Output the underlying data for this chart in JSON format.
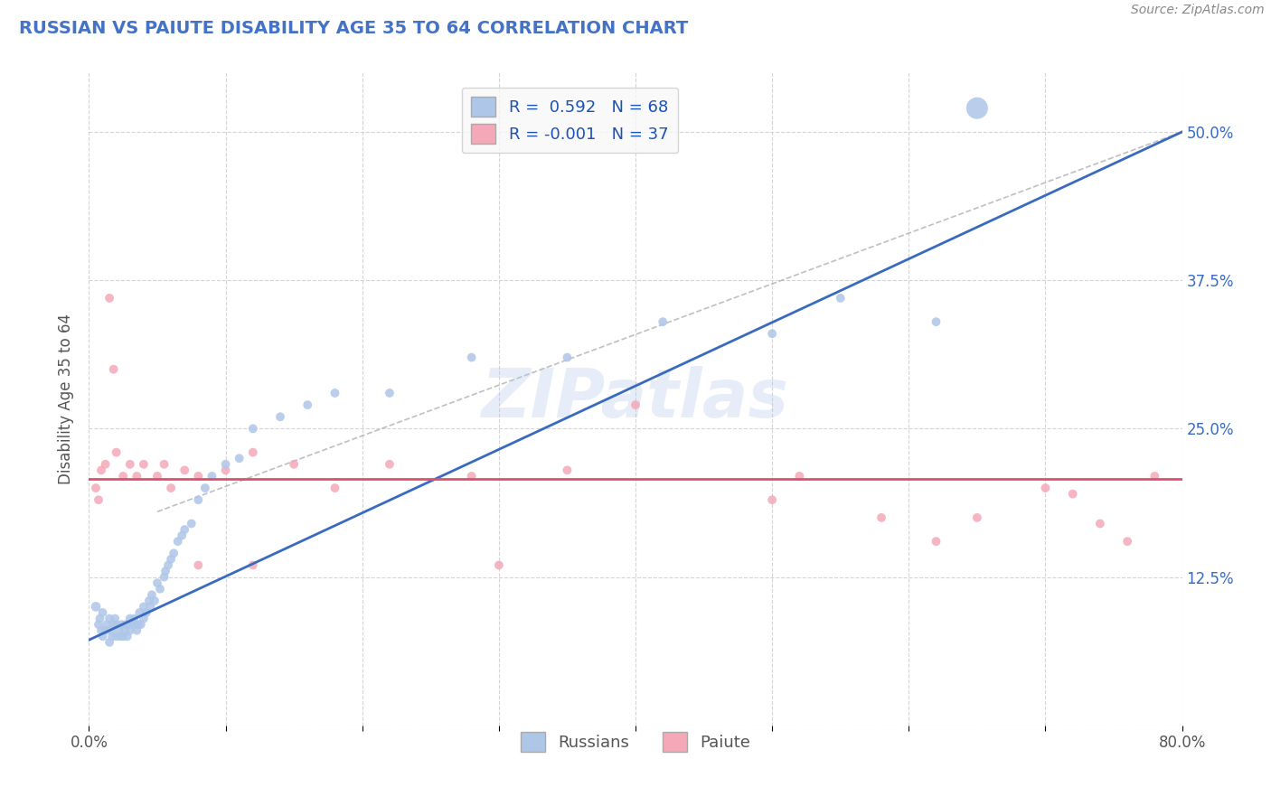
{
  "title": "RUSSIAN VS PAIUTE DISABILITY AGE 35 TO 64 CORRELATION CHART",
  "source": "Source: ZipAtlas.com",
  "ylabel": "Disability Age 35 to 64",
  "xlim": [
    0.0,
    0.8
  ],
  "ylim": [
    0.0,
    0.55
  ],
  "ytick_labels": [
    "",
    "12.5%",
    "25.0%",
    "37.5%",
    "50.0%"
  ],
  "ytick_values": [
    0.0,
    0.125,
    0.25,
    0.375,
    0.5
  ],
  "xtick_values": [
    0.0,
    0.1,
    0.2,
    0.3,
    0.4,
    0.5,
    0.6,
    0.7,
    0.8
  ],
  "xtick_labels": [
    "0.0%",
    "",
    "",
    "",
    "",
    "",
    "",
    "",
    "80.0%"
  ],
  "russian_R": 0.592,
  "russian_N": 68,
  "paiute_R": -0.001,
  "paiute_N": 37,
  "russian_color": "#aec6e8",
  "paiute_color": "#f4a8b8",
  "russian_line_color": "#3a6abf",
  "paiute_line_color": "#e0506a",
  "paiute_line_y": 0.208,
  "russian_line_x0": 0.0,
  "russian_line_y0": 0.072,
  "russian_line_x1": 0.8,
  "russian_line_y1": 0.5,
  "diag_line_color": "#aaaaaa",
  "title_color": "#4472c4",
  "watermark": "ZIPatlas",
  "watermark_color": "#aec6e8",
  "background_color": "#ffffff",
  "grid_color": "#d0d0d0",
  "legend_box_color": "#f8f8f8",
  "russian_scatter_x": [
    0.005,
    0.007,
    0.008,
    0.009,
    0.01,
    0.01,
    0.012,
    0.013,
    0.015,
    0.015,
    0.016,
    0.017,
    0.018,
    0.019,
    0.02,
    0.02,
    0.022,
    0.023,
    0.024,
    0.025,
    0.026,
    0.027,
    0.028,
    0.029,
    0.03,
    0.03,
    0.032,
    0.033,
    0.034,
    0.035,
    0.036,
    0.037,
    0.038,
    0.04,
    0.04,
    0.042,
    0.044,
    0.045,
    0.046,
    0.048,
    0.05,
    0.052,
    0.055,
    0.056,
    0.058,
    0.06,
    0.062,
    0.065,
    0.068,
    0.07,
    0.075,
    0.08,
    0.085,
    0.09,
    0.1,
    0.11,
    0.12,
    0.14,
    0.16,
    0.18,
    0.22,
    0.28,
    0.35,
    0.42,
    0.5,
    0.55,
    0.62,
    0.65
  ],
  "russian_scatter_y": [
    0.1,
    0.085,
    0.09,
    0.08,
    0.095,
    0.075,
    0.08,
    0.085,
    0.07,
    0.09,
    0.08,
    0.075,
    0.085,
    0.09,
    0.075,
    0.085,
    0.08,
    0.075,
    0.085,
    0.075,
    0.08,
    0.085,
    0.075,
    0.085,
    0.08,
    0.09,
    0.085,
    0.09,
    0.085,
    0.08,
    0.085,
    0.095,
    0.085,
    0.09,
    0.1,
    0.095,
    0.105,
    0.1,
    0.11,
    0.105,
    0.12,
    0.115,
    0.125,
    0.13,
    0.135,
    0.14,
    0.145,
    0.155,
    0.16,
    0.165,
    0.17,
    0.19,
    0.2,
    0.21,
    0.22,
    0.225,
    0.25,
    0.26,
    0.27,
    0.28,
    0.28,
    0.31,
    0.31,
    0.34,
    0.33,
    0.36,
    0.34,
    0.52
  ],
  "russian_scatter_size": [
    60,
    50,
    50,
    50,
    50,
    50,
    50,
    50,
    50,
    50,
    50,
    50,
    50,
    50,
    50,
    50,
    50,
    50,
    50,
    50,
    50,
    50,
    50,
    50,
    50,
    50,
    50,
    50,
    50,
    50,
    50,
    50,
    50,
    50,
    50,
    50,
    50,
    50,
    50,
    50,
    50,
    50,
    50,
    50,
    50,
    50,
    50,
    50,
    50,
    50,
    50,
    50,
    50,
    50,
    50,
    50,
    50,
    50,
    50,
    50,
    50,
    50,
    50,
    50,
    50,
    50,
    50,
    300
  ],
  "paiute_scatter_x": [
    0.005,
    0.007,
    0.009,
    0.012,
    0.015,
    0.018,
    0.02,
    0.025,
    0.03,
    0.035,
    0.04,
    0.05,
    0.055,
    0.06,
    0.07,
    0.08,
    0.1,
    0.12,
    0.15,
    0.18,
    0.22,
    0.28,
    0.35,
    0.4,
    0.5,
    0.52,
    0.58,
    0.62,
    0.65,
    0.7,
    0.72,
    0.74,
    0.76,
    0.78,
    0.3,
    0.08,
    0.12
  ],
  "paiute_scatter_y": [
    0.2,
    0.19,
    0.215,
    0.22,
    0.36,
    0.3,
    0.23,
    0.21,
    0.22,
    0.21,
    0.22,
    0.21,
    0.22,
    0.2,
    0.215,
    0.21,
    0.215,
    0.23,
    0.22,
    0.2,
    0.22,
    0.21,
    0.215,
    0.27,
    0.19,
    0.21,
    0.175,
    0.155,
    0.175,
    0.2,
    0.195,
    0.17,
    0.155,
    0.21,
    0.135,
    0.135,
    0.135
  ],
  "paiute_scatter_size": [
    50,
    50,
    50,
    50,
    50,
    50,
    50,
    50,
    50,
    50,
    50,
    50,
    50,
    50,
    50,
    50,
    50,
    50,
    50,
    50,
    50,
    50,
    50,
    50,
    50,
    50,
    50,
    50,
    50,
    50,
    50,
    50,
    50,
    50,
    50,
    50,
    50
  ]
}
